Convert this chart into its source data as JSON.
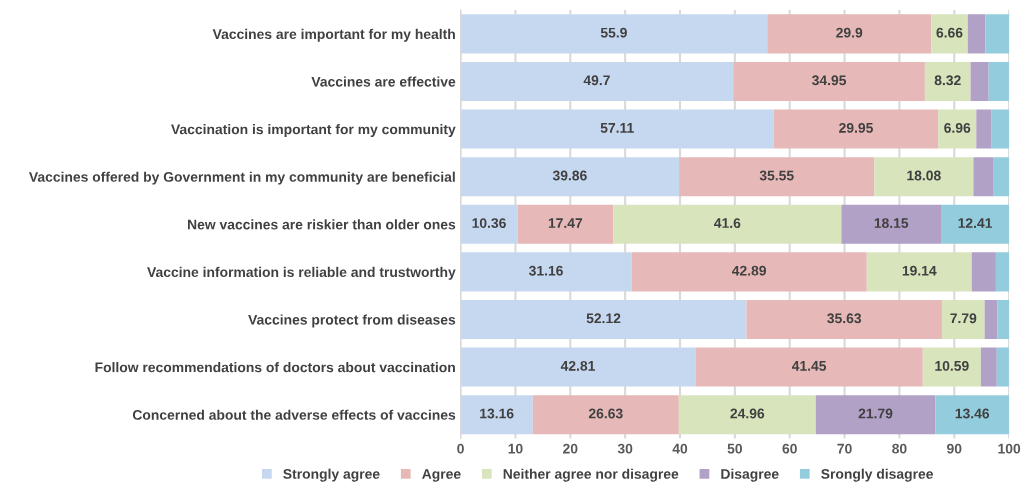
{
  "chart_data": {
    "type": "bar",
    "orientation": "horizontal",
    "stacked": true,
    "categories": [
      "Vaccines are important for my health",
      "Vaccines are effective",
      "Vaccination is important for my community",
      "Vaccines offered by Government in my community are beneficial",
      "New vaccines are riskier than older ones",
      "Vaccine information is reliable and trustworthy",
      "Vaccines protect from diseases",
      "Follow recommendations of doctors about vaccination",
      "Concerned about the adverse effects of vaccines"
    ],
    "series": [
      {
        "name": "Strongly agree",
        "color": "#c6d8f0",
        "values": [
          55.9,
          49.7,
          57.11,
          39.86,
          10.36,
          31.16,
          52.12,
          42.81,
          13.16
        ],
        "value_labels": [
          "55.9",
          "49.7",
          "57.11",
          "39.86",
          "10.36",
          "31.16",
          "52.12",
          "42.81",
          "13.16"
        ]
      },
      {
        "name": "Agree",
        "color": "#e6b9b8",
        "values": [
          29.9,
          34.95,
          29.95,
          35.55,
          17.47,
          42.89,
          35.63,
          41.45,
          26.63
        ],
        "value_labels": [
          "29.9",
          "34.95",
          "29.95",
          "35.55",
          "17.47",
          "42.89",
          "35.63",
          "41.45",
          "26.63"
        ]
      },
      {
        "name": "Neither agree nor disagree",
        "color": "#d8e4bc",
        "values": [
          6.66,
          8.32,
          6.96,
          18.08,
          41.6,
          19.14,
          7.79,
          10.59,
          24.96
        ],
        "value_labels": [
          "6.66",
          "8.32",
          "6.96",
          "18.08",
          "41.6",
          "19.14",
          "7.79",
          "10.59",
          "24.96"
        ]
      },
      {
        "name": "Disagree",
        "color": "#b2a1c7",
        "values": [
          3.2,
          3.3,
          2.7,
          3.7,
          18.15,
          4.4,
          2.3,
          2.9,
          21.79
        ],
        "value_labels": [
          null,
          null,
          null,
          null,
          "18.15",
          null,
          null,
          null,
          "21.79"
        ]
      },
      {
        "name": "Srongly disagree",
        "color": "#93cddd",
        "values": [
          4.4,
          3.7,
          3.3,
          2.8,
          12.41,
          2.4,
          2.2,
          2.2,
          13.46
        ],
        "value_labels": [
          null,
          null,
          null,
          null,
          "12.41",
          null,
          null,
          null,
          "13.46"
        ]
      }
    ],
    "xlim": [
      0,
      100
    ],
    "xticks": [
      0,
      10,
      20,
      30,
      40,
      50,
      60,
      70,
      80,
      90,
      100
    ],
    "grid": "x",
    "legend": "bottom"
  }
}
